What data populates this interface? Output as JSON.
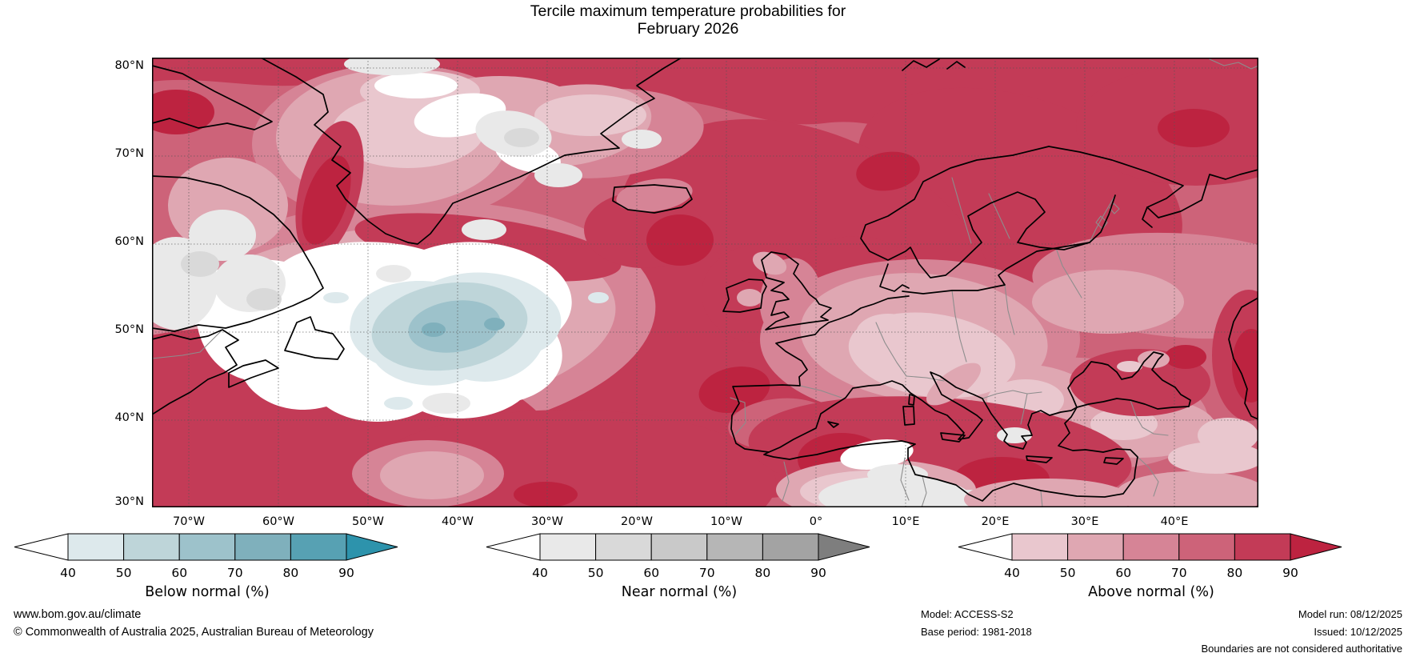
{
  "title": {
    "line1": "Tercile maximum temperature probabilities for",
    "line2": "February 2026"
  },
  "map": {
    "lat_labels": [
      "80°N",
      "70°N",
      "60°N",
      "50°N",
      "40°N",
      "30°N"
    ],
    "lon_labels": [
      "70°W",
      "60°W",
      "50°W",
      "40°W",
      "30°W",
      "20°W",
      "10°W",
      "0°",
      "10°E",
      "20°E",
      "30°E",
      "40°E"
    ]
  },
  "legends": [
    {
      "title": "Below normal (%)",
      "ticks": [
        "40",
        "50",
        "60",
        "70",
        "80",
        "90"
      ],
      "under_color": "#ffffff",
      "segment_colors": [
        "#dde9ec",
        "#bed5d9",
        "#9dc2cb",
        "#7fb0bc",
        "#57a1b3"
      ],
      "over_color": "#2d93ac"
    },
    {
      "title": "Near normal (%)",
      "ticks": [
        "40",
        "50",
        "60",
        "70",
        "80",
        "90"
      ],
      "under_color": "#ffffff",
      "segment_colors": [
        "#e9e9e9",
        "#d9d9d9",
        "#c9c9c9",
        "#b6b6b6",
        "#a3a3a3"
      ],
      "over_color": "#7e7e7e"
    },
    {
      "title": "Above normal (%)",
      "ticks": [
        "40",
        "50",
        "60",
        "70",
        "80",
        "90"
      ],
      "under_color": "#ffffff",
      "segment_colors": [
        "#e9c7ce",
        "#dfa7b2",
        "#d68496",
        "#cd6379",
        "#c33b57"
      ],
      "over_color": "#bd2340"
    }
  ],
  "footer": {
    "url": "www.bom.gov.au/climate",
    "copyright": "© Commonwealth of Australia 2025, Australian Bureau of Meteorology",
    "model": "Model: ACCESS-S2",
    "base_period": "Base period: 1981-2018",
    "model_run": "Model run: 08/12/2025",
    "issued": "Issued: 10/12/2025",
    "disclaimer": "Boundaries are not considered authoritative"
  }
}
